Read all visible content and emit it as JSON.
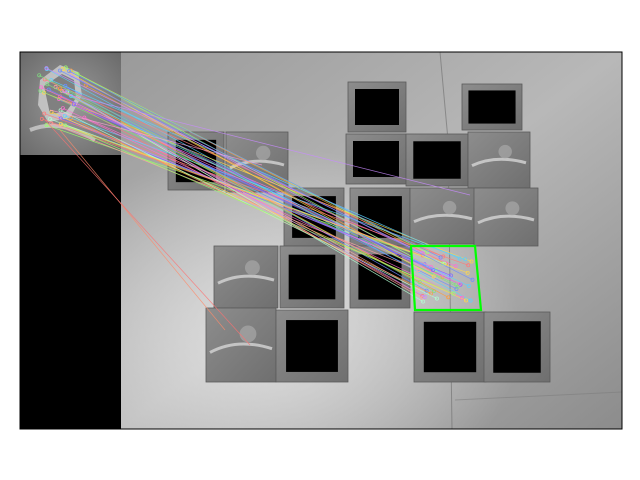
{
  "figure": {
    "description_type": "feature-matching-visualization",
    "highlight_color": "#00ff00",
    "match_line_colors": [
      "#7b6cff",
      "#ff7a7a",
      "#7fe07f",
      "#ff9d3c",
      "#c98bff",
      "#5ad1ff",
      "#ffd84a",
      "#ff6fd1",
      "#9cff6b",
      "#6b8bff",
      "#ffa3a3",
      "#b0ffd2"
    ]
  }
}
